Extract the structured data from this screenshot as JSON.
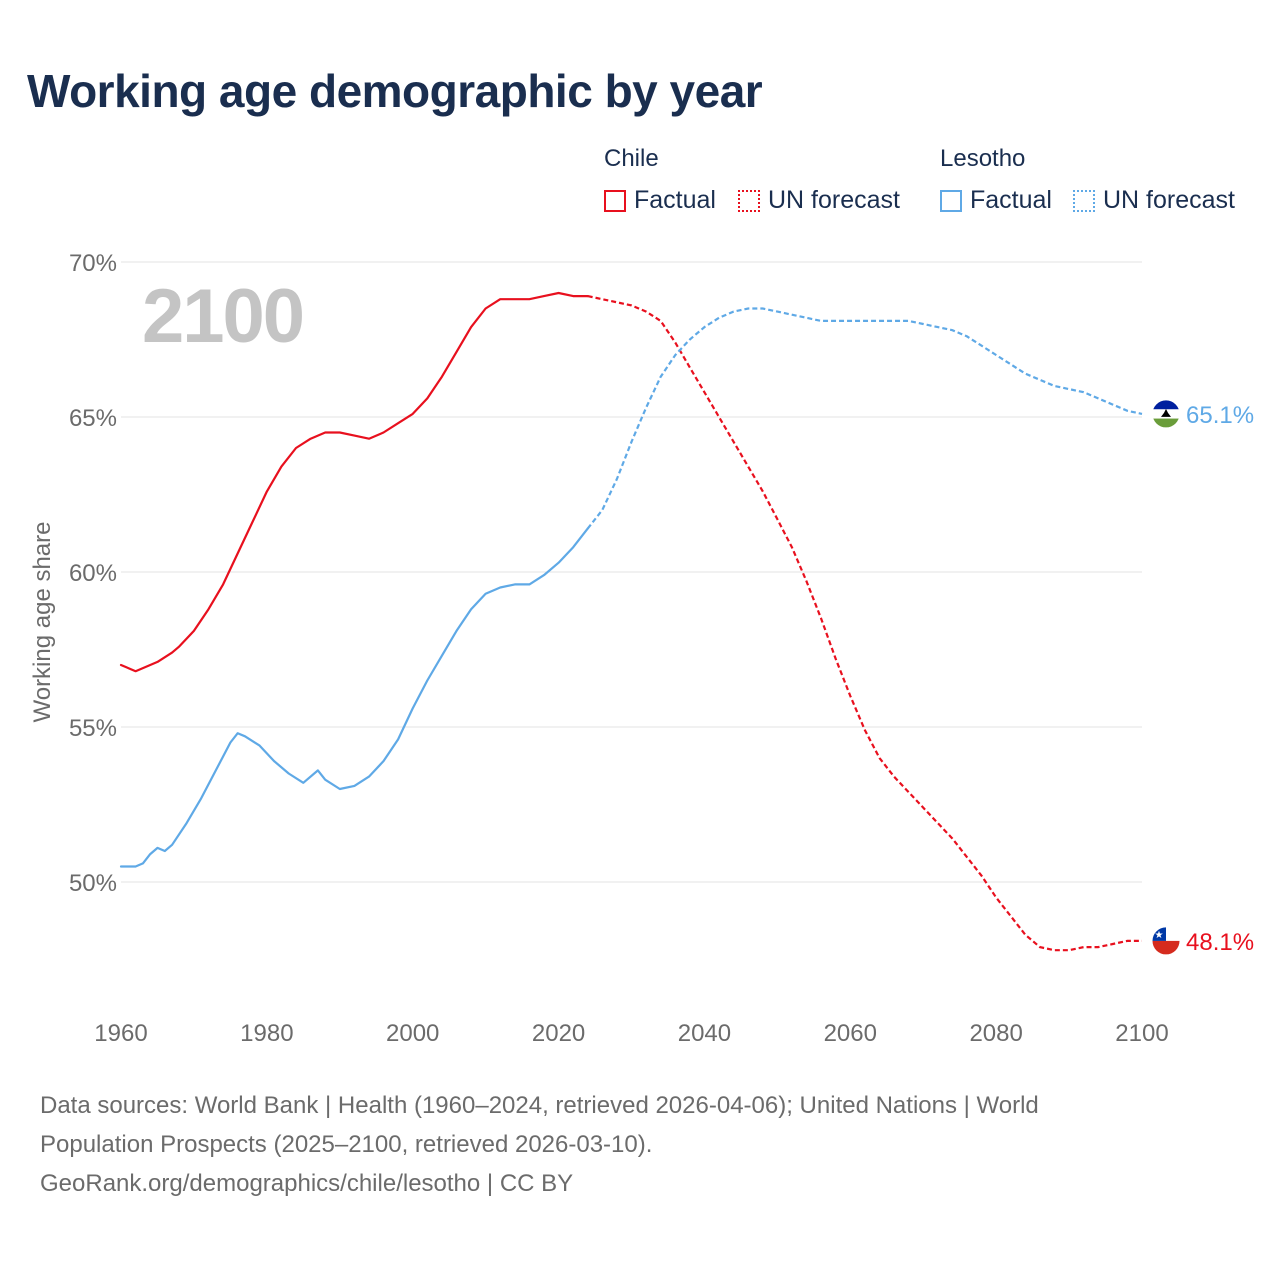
{
  "title": "Working age demographic by year",
  "legend": {
    "groups": [
      {
        "country": "Chile",
        "factual_label": "Factual",
        "forecast_label": "UN forecast",
        "color": "#e8101e"
      },
      {
        "country": "Lesotho",
        "factual_label": "Factual",
        "forecast_label": "UN forecast",
        "color": "#5fa9e6"
      }
    ]
  },
  "footer": {
    "line1": "Data sources: World Bank | Health (1960–2024, retrieved 2026-04-06); United Nations | World",
    "line2": "Population Prospects (2025–2100, retrieved 2026-03-10).",
    "line3": "GeoRank.org/demographics/chile/lesotho | CC BY"
  },
  "chart_data": {
    "type": "line",
    "title": "Working age demographic by year",
    "year_watermark": "2100",
    "xlabel": "",
    "ylabel": "Working age share",
    "xlim": [
      1960,
      2100
    ],
    "ylim": [
      46,
      70
    ],
    "x_ticks": [
      "1960",
      "1980",
      "2000",
      "2020",
      "2040",
      "2060",
      "2080",
      "2100"
    ],
    "y_ticks": [
      {
        "value": 70,
        "label": "70%"
      },
      {
        "value": 65,
        "label": "65%"
      },
      {
        "value": 60,
        "label": "60%"
      },
      {
        "value": 55,
        "label": "55%"
      },
      {
        "value": 50,
        "label": "50%"
      }
    ],
    "grid": true,
    "factual_end_year": 2024,
    "series": [
      {
        "name": "Chile",
        "color": "#e8101e",
        "end_label": "48.1%",
        "flag": "chile",
        "points": [
          [
            1960,
            57.0
          ],
          [
            1962,
            56.8
          ],
          [
            1965,
            57.1
          ],
          [
            1967,
            57.4
          ],
          [
            1968,
            57.6
          ],
          [
            1970,
            58.1
          ],
          [
            1972,
            58.8
          ],
          [
            1974,
            59.6
          ],
          [
            1976,
            60.6
          ],
          [
            1978,
            61.6
          ],
          [
            1980,
            62.6
          ],
          [
            1982,
            63.4
          ],
          [
            1984,
            64.0
          ],
          [
            1986,
            64.3
          ],
          [
            1988,
            64.5
          ],
          [
            1990,
            64.5
          ],
          [
            1992,
            64.4
          ],
          [
            1994,
            64.3
          ],
          [
            1996,
            64.5
          ],
          [
            1998,
            64.8
          ],
          [
            2000,
            65.1
          ],
          [
            2002,
            65.6
          ],
          [
            2004,
            66.3
          ],
          [
            2006,
            67.1
          ],
          [
            2008,
            67.9
          ],
          [
            2010,
            68.5
          ],
          [
            2012,
            68.8
          ],
          [
            2014,
            68.8
          ],
          [
            2016,
            68.8
          ],
          [
            2018,
            68.9
          ],
          [
            2020,
            69.0
          ],
          [
            2022,
            68.9
          ],
          [
            2024,
            68.9
          ],
          [
            2026,
            68.8
          ],
          [
            2028,
            68.7
          ],
          [
            2030,
            68.6
          ],
          [
            2032,
            68.4
          ],
          [
            2034,
            68.1
          ],
          [
            2036,
            67.4
          ],
          [
            2038,
            66.6
          ],
          [
            2040,
            65.8
          ],
          [
            2042,
            65.0
          ],
          [
            2044,
            64.2
          ],
          [
            2046,
            63.4
          ],
          [
            2048,
            62.6
          ],
          [
            2050,
            61.7
          ],
          [
            2052,
            60.8
          ],
          [
            2054,
            59.7
          ],
          [
            2056,
            58.5
          ],
          [
            2058,
            57.2
          ],
          [
            2060,
            56.0
          ],
          [
            2062,
            54.9
          ],
          [
            2064,
            54.0
          ],
          [
            2066,
            53.4
          ],
          [
            2068,
            52.9
          ],
          [
            2070,
            52.4
          ],
          [
            2072,
            51.9
          ],
          [
            2074,
            51.4
          ],
          [
            2076,
            50.8
          ],
          [
            2078,
            50.2
          ],
          [
            2080,
            49.5
          ],
          [
            2082,
            48.9
          ],
          [
            2084,
            48.3
          ],
          [
            2086,
            47.9
          ],
          [
            2088,
            47.8
          ],
          [
            2090,
            47.8
          ],
          [
            2092,
            47.9
          ],
          [
            2094,
            47.9
          ],
          [
            2096,
            48.0
          ],
          [
            2098,
            48.1
          ],
          [
            2100,
            48.1
          ]
        ]
      },
      {
        "name": "Lesotho",
        "color": "#5fa9e6",
        "end_label": "65.1%",
        "flag": "lesotho",
        "points": [
          [
            1960,
            50.5
          ],
          [
            1962,
            50.5
          ],
          [
            1963,
            50.6
          ],
          [
            1964,
            50.9
          ],
          [
            1965,
            51.1
          ],
          [
            1966,
            51.0
          ],
          [
            1967,
            51.2
          ],
          [
            1969,
            51.9
          ],
          [
            1971,
            52.7
          ],
          [
            1973,
            53.6
          ],
          [
            1975,
            54.5
          ],
          [
            1976,
            54.8
          ],
          [
            1977,
            54.7
          ],
          [
            1979,
            54.4
          ],
          [
            1981,
            53.9
          ],
          [
            1983,
            53.5
          ],
          [
            1985,
            53.2
          ],
          [
            1987,
            53.6
          ],
          [
            1988,
            53.3
          ],
          [
            1990,
            53.0
          ],
          [
            1992,
            53.1
          ],
          [
            1994,
            53.4
          ],
          [
            1996,
            53.9
          ],
          [
            1998,
            54.6
          ],
          [
            2000,
            55.6
          ],
          [
            2002,
            56.5
          ],
          [
            2004,
            57.3
          ],
          [
            2006,
            58.1
          ],
          [
            2008,
            58.8
          ],
          [
            2010,
            59.3
          ],
          [
            2012,
            59.5
          ],
          [
            2014,
            59.6
          ],
          [
            2016,
            59.6
          ],
          [
            2018,
            59.9
          ],
          [
            2020,
            60.3
          ],
          [
            2022,
            60.8
          ],
          [
            2024,
            61.4
          ],
          [
            2026,
            62.0
          ],
          [
            2028,
            63.0
          ],
          [
            2030,
            64.2
          ],
          [
            2032,
            65.3
          ],
          [
            2034,
            66.3
          ],
          [
            2036,
            67.0
          ],
          [
            2038,
            67.5
          ],
          [
            2040,
            67.9
          ],
          [
            2042,
            68.2
          ],
          [
            2044,
            68.4
          ],
          [
            2046,
            68.5
          ],
          [
            2048,
            68.5
          ],
          [
            2050,
            68.4
          ],
          [
            2052,
            68.3
          ],
          [
            2054,
            68.2
          ],
          [
            2056,
            68.1
          ],
          [
            2058,
            68.1
          ],
          [
            2060,
            68.1
          ],
          [
            2062,
            68.1
          ],
          [
            2064,
            68.1
          ],
          [
            2066,
            68.1
          ],
          [
            2068,
            68.1
          ],
          [
            2070,
            68.0
          ],
          [
            2072,
            67.9
          ],
          [
            2074,
            67.8
          ],
          [
            2076,
            67.6
          ],
          [
            2078,
            67.3
          ],
          [
            2080,
            67.0
          ],
          [
            2082,
            66.7
          ],
          [
            2084,
            66.4
          ],
          [
            2086,
            66.2
          ],
          [
            2088,
            66.0
          ],
          [
            2090,
            65.9
          ],
          [
            2092,
            65.8
          ],
          [
            2094,
            65.6
          ],
          [
            2096,
            65.4
          ],
          [
            2098,
            65.2
          ],
          [
            2100,
            65.1
          ]
        ]
      }
    ]
  }
}
